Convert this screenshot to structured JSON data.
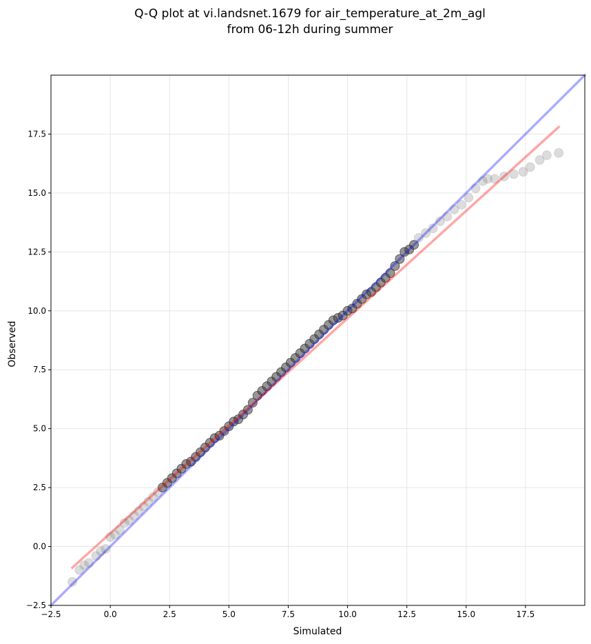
{
  "chart_data": {
    "type": "scatter",
    "title_lines": [
      "Q-Q plot at vi.landsnet.1679 for air_temperature_at_2m_agl",
      "from 06-12h during summer"
    ],
    "xlabel": "Simulated",
    "ylabel": "Observed",
    "xlim": [
      -2.5,
      20
    ],
    "ylim": [
      -2.5,
      20
    ],
    "xticks": [
      -2.5,
      0.0,
      2.5,
      5.0,
      7.5,
      10.0,
      12.5,
      15.0,
      17.5
    ],
    "yticks": [
      -2.5,
      0.0,
      2.5,
      5.0,
      7.5,
      10.0,
      12.5,
      15.0,
      17.5
    ],
    "xtick_labels": [
      "−2.5",
      "0.0",
      "2.5",
      "5.0",
      "7.5",
      "10.0",
      "12.5",
      "15.0",
      "17.5"
    ],
    "ytick_labels": [
      "−2.5",
      "0.0",
      "2.5",
      "5.0",
      "7.5",
      "10.0",
      "12.5",
      "15.0",
      "17.5"
    ],
    "grid": true,
    "legend": "none",
    "reference_line": {
      "x": [
        -2.5,
        20
      ],
      "y": [
        -2.5,
        20
      ],
      "color": "#0000ff"
    },
    "fit_line": {
      "x": [
        -1.6,
        18.9
      ],
      "y": [
        -0.9,
        17.8
      ],
      "color": "#ff0000"
    },
    "points": {
      "color": "#808080",
      "x": [
        -1.6,
        -1.3,
        -1.1,
        -0.9,
        -0.6,
        -0.4,
        -0.2,
        0.0,
        0.2,
        0.4,
        0.6,
        0.8,
        1.0,
        1.2,
        1.4,
        1.6,
        1.8,
        2.0,
        2.2,
        2.4,
        2.6,
        2.8,
        3.0,
        3.2,
        3.4,
        3.6,
        3.8,
        4.0,
        4.2,
        4.4,
        4.6,
        4.8,
        5.0,
        5.2,
        5.4,
        5.6,
        5.8,
        6.0,
        6.2,
        6.4,
        6.6,
        6.8,
        7.0,
        7.2,
        7.4,
        7.6,
        7.8,
        8.0,
        8.2,
        8.4,
        8.6,
        8.8,
        9.0,
        9.2,
        9.4,
        9.6,
        9.8,
        10.0,
        10.2,
        10.4,
        10.6,
        10.8,
        11.0,
        11.2,
        11.4,
        11.6,
        11.8,
        12.0,
        12.2,
        12.4,
        12.6,
        12.8,
        13.0,
        13.3,
        13.6,
        13.9,
        14.2,
        14.5,
        14.8,
        15.1,
        15.4,
        15.7,
        15.9,
        16.2,
        16.6,
        17.0,
        17.4,
        17.7,
        18.1,
        18.4,
        18.9
      ],
      "y": [
        -1.5,
        -1.0,
        -0.8,
        -0.7,
        -0.4,
        -0.2,
        -0.1,
        0.4,
        0.5,
        0.7,
        1.0,
        1.1,
        1.3,
        1.5,
        1.7,
        1.9,
        2.1,
        2.3,
        2.5,
        2.7,
        2.9,
        3.1,
        3.3,
        3.5,
        3.6,
        3.8,
        4.0,
        4.2,
        4.4,
        4.6,
        4.7,
        4.9,
        5.1,
        5.3,
        5.4,
        5.6,
        5.8,
        6.1,
        6.4,
        6.6,
        6.8,
        7.0,
        7.2,
        7.4,
        7.6,
        7.8,
        8.0,
        8.2,
        8.4,
        8.6,
        8.8,
        9.0,
        9.2,
        9.4,
        9.6,
        9.7,
        9.8,
        10.0,
        10.1,
        10.3,
        10.5,
        10.7,
        10.8,
        11.0,
        11.2,
        11.4,
        11.6,
        11.9,
        12.2,
        12.5,
        12.6,
        12.8,
        13.1,
        13.3,
        13.5,
        13.8,
        14.0,
        14.3,
        14.5,
        14.8,
        15.2,
        15.5,
        15.6,
        15.6,
        15.7,
        15.8,
        15.9,
        16.1,
        16.4,
        16.6,
        16.7
      ]
    }
  }
}
